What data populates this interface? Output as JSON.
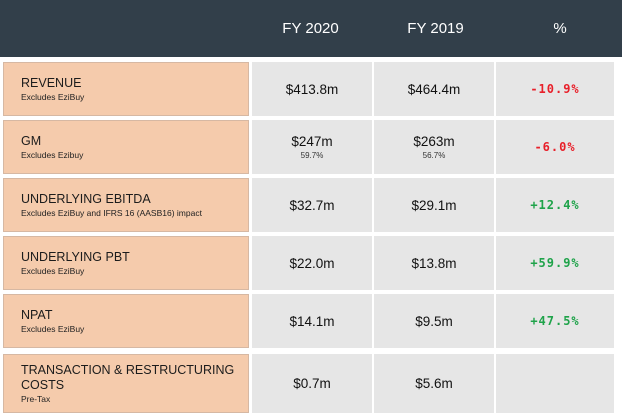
{
  "header": {
    "col1": "FY 2020",
    "col2": "FY 2019",
    "col3": "%"
  },
  "colors": {
    "header_bg": "#323f4a",
    "label_bg": "#f5cbac",
    "cell_bg": "#e6e6e6",
    "negative": "#e8202a",
    "positive": "#1fa34a"
  },
  "rows": [
    {
      "label": "REVENUE",
      "sub": "Excludes EziBuy",
      "fy2020": "$413.8m",
      "fy2020_sub": "",
      "fy2019": "$464.4m",
      "fy2019_sub": "",
      "pct": "-10.9%"
    },
    {
      "label": "GM",
      "sub": "Excludes Ezibuy",
      "fy2020": "$247m",
      "fy2020_sub": "59.7%",
      "fy2019": "$263m",
      "fy2019_sub": "56.7%",
      "pct": "-6.0%"
    },
    {
      "label": "UNDERLYING EBITDA",
      "sub": "Excludes EziBuy and IFRS 16 (AASB16) impact",
      "fy2020": "$32.7m",
      "fy2020_sub": "",
      "fy2019": "$29.1m",
      "fy2019_sub": "",
      "pct": "+12.4%"
    },
    {
      "label": "UNDERLYING PBT",
      "sub": "Excludes EziBuy",
      "fy2020": "$22.0m",
      "fy2020_sub": "",
      "fy2019": "$13.8m",
      "fy2019_sub": "",
      "pct": "+59.9%"
    },
    {
      "label": "NPAT",
      "sub": "Excludes EziBuy",
      "fy2020": "$14.1m",
      "fy2020_sub": "",
      "fy2019": "$9.5m",
      "fy2019_sub": "",
      "pct": "+47.5%"
    },
    {
      "label": "TRANSACTION & RESTRUCTURING COSTS",
      "sub": "Pre-Tax",
      "fy2020": "$0.7m",
      "fy2020_sub": "",
      "fy2019": "$5.6m",
      "fy2019_sub": "",
      "pct": ""
    }
  ]
}
